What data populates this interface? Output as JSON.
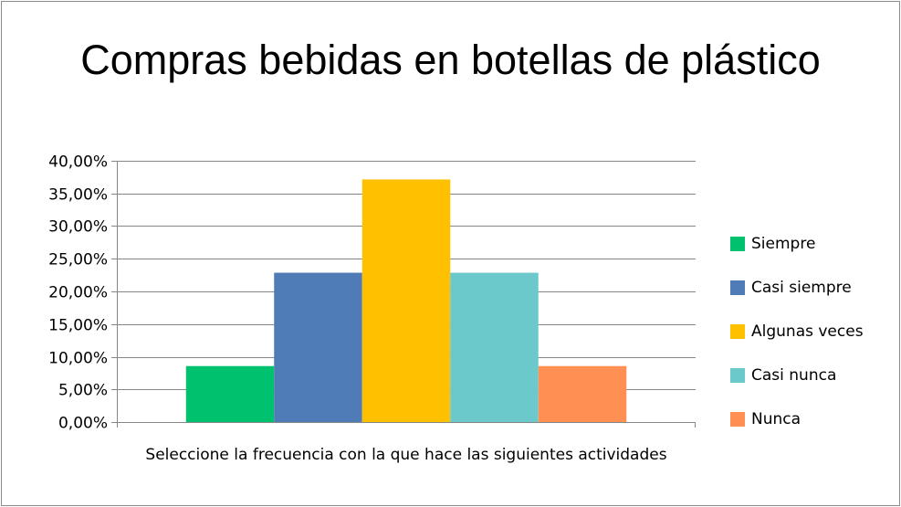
{
  "chart_data": {
    "type": "bar",
    "title": "Compras bebidas en botellas de plástico",
    "categories": [
      "Seleccione la frecuencia con la que hace las siguientes actividades"
    ],
    "series": [
      {
        "name": "Siempre",
        "values": [
          0.0857
        ],
        "color": "#00c26e"
      },
      {
        "name": "Casi siempre",
        "values": [
          0.2286
        ],
        "color": "#4f7bb6"
      },
      {
        "name": "Algunas veces",
        "values": [
          0.3714
        ],
        "color": "#ffc000"
      },
      {
        "name": "Casi nunca",
        "values": [
          0.2286
        ],
        "color": "#6bc9cc"
      },
      {
        "name": "Nunca",
        "values": [
          0.0857
        ],
        "color": "#ff8f52"
      }
    ],
    "y_ticks": [
      "0,00%",
      "5,00%",
      "10,00%",
      "15,00%",
      "20,00%",
      "25,00%",
      "30,00%",
      "35,00%",
      "40,00%"
    ],
    "ylim": [
      0,
      0.4
    ],
    "xlabel": "",
    "ylabel": "",
    "grid": true,
    "legend_position": "right",
    "gridline_color": "#868686"
  }
}
